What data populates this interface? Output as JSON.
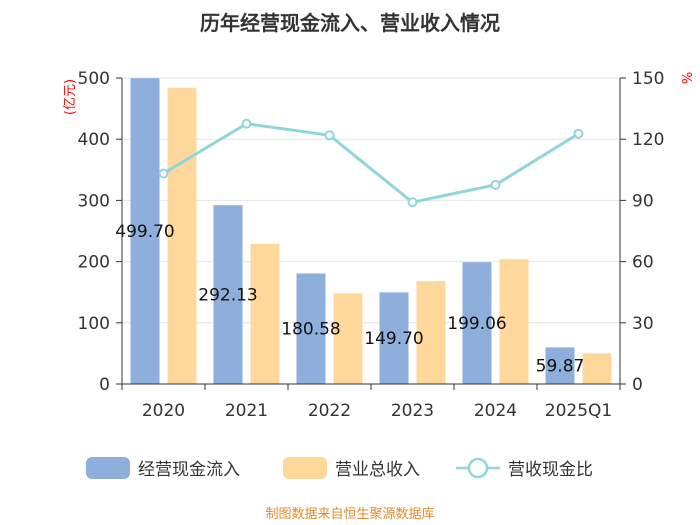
{
  "chart_data": {
    "type": "bar",
    "title": "历年经营现金流入、营业收入情况",
    "categories": [
      "2020",
      "2021",
      "2022",
      "2023",
      "2024",
      "2025Q1"
    ],
    "series": [
      {
        "name": "经营现金流入",
        "kind": "bar",
        "axis": "left",
        "color": "#8eaedc",
        "values": [
          499.7,
          292.13,
          180.58,
          149.7,
          199.06,
          59.87
        ]
      },
      {
        "name": "营业总收入",
        "kind": "bar",
        "axis": "left",
        "color": "#fdd89a",
        "values": [
          484,
          229,
          148,
          168,
          204,
          50
        ]
      },
      {
        "name": "营收现金比",
        "kind": "line",
        "axis": "right",
        "color": "#8fd6db",
        "values": [
          103.2,
          127.6,
          121.9,
          89.1,
          97.6,
          122.7
        ]
      }
    ],
    "data_labels": [
      "499.70",
      "292.13",
      "180.58",
      "149.70",
      "199.06",
      "59.87"
    ],
    "left_axis": {
      "unit": "(亿元)",
      "min": 0,
      "max": 500,
      "ticks": [
        "0",
        "100",
        "200",
        "300",
        "400",
        "500"
      ]
    },
    "right_axis": {
      "unit": "%",
      "min": 0,
      "max": 150,
      "ticks": [
        "0",
        "30",
        "60",
        "90",
        "120",
        "150"
      ]
    },
    "legend_position": "bottom",
    "grid": true
  },
  "footer": {
    "source": "制图数据来自恒生聚源数据库"
  }
}
